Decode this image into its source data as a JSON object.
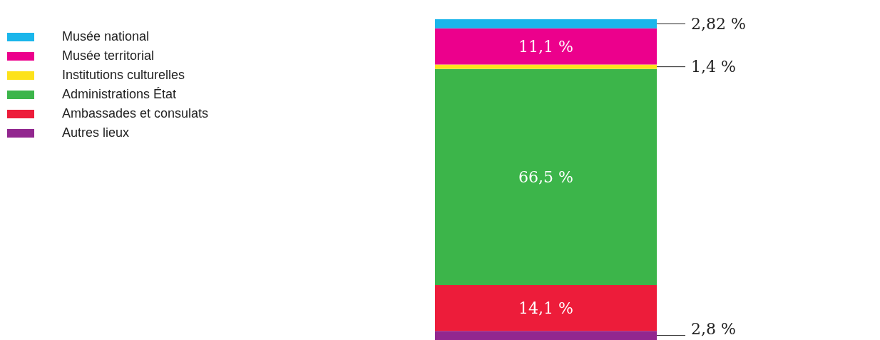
{
  "chart_data": {
    "type": "bar",
    "stacked": true,
    "categories": [
      null
    ],
    "legend": "top left",
    "series": [
      {
        "name": "Autres lieux",
        "color": "#92278f",
        "values": [
          2.8
        ],
        "value_labels": [
          "2,8 %"
        ]
      },
      {
        "name": "Ambassades et consulats",
        "color": "#ed1c3a",
        "values": [
          14.1
        ],
        "value_labels": [
          "14,1 %"
        ]
      },
      {
        "name": "Administrations État",
        "color": "#3cb54a",
        "values": [
          66.5
        ],
        "value_labels": [
          "66,5 %"
        ]
      },
      {
        "name": "Institutions culturelles",
        "color": "#fde21b",
        "values": [
          1.4
        ],
        "value_labels": [
          "1,4 %"
        ]
      },
      {
        "name": "Musée territorial",
        "color": "#ec008c",
        "values": [
          11.1
        ],
        "value_labels": [
          "11,1 %"
        ]
      },
      {
        "name": "Musée national",
        "color": "#1ab6eb",
        "values": [
          2.82
        ],
        "value_labels": [
          "2,82 %"
        ]
      }
    ]
  }
}
